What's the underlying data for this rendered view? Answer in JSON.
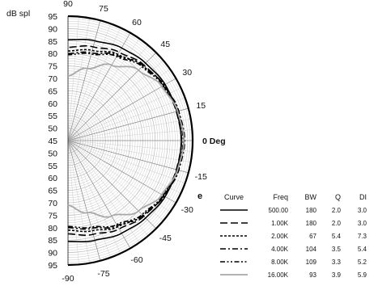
{
  "chart_data": {
    "type": "polar",
    "ylabel": "dB spl",
    "r_ticks": [
      95,
      90,
      85,
      80,
      75,
      70,
      65,
      60,
      55,
      50,
      45
    ],
    "r_range": [
      45,
      95
    ],
    "angle_range": [
      -90,
      90
    ],
    "angle_tick_labels": [
      "90",
      "75",
      "60",
      "45",
      "30",
      "15",
      "0 Deg",
      "-15",
      "-30",
      "-45",
      "-60",
      "-75",
      "-90"
    ],
    "angle_tick_values": [
      90,
      75,
      60,
      45,
      30,
      15,
      0,
      -15,
      -30,
      -45,
      -60,
      -75,
      -90
    ],
    "grid": true,
    "angles": [
      -90,
      -75,
      -60,
      -45,
      -30,
      -15,
      0,
      15,
      30,
      45,
      60,
      75,
      90
    ],
    "series": [
      {
        "name": "500.00",
        "style": "solid",
        "color": "#000000",
        "values": [
          85.5,
          86.5,
          88,
          89,
          90,
          90.2,
          90.5,
          90.2,
          90,
          89,
          88,
          86.5,
          85.5
        ]
      },
      {
        "name": "1.00K",
        "style": "longdash",
        "color": "#000000",
        "values": [
          82.5,
          84,
          86,
          88,
          89.2,
          90,
          90.5,
          90,
          89.2,
          88,
          86,
          84,
          82.5
        ]
      },
      {
        "name": "2.00K",
        "style": "dotted",
        "color": "#000000",
        "values": [
          81,
          82.5,
          85,
          87.5,
          89.5,
          90.8,
          91.5,
          90.8,
          89.5,
          87.5,
          85,
          82.5,
          81
        ]
      },
      {
        "name": "4.00K",
        "style": "dashdot",
        "color": "#000000",
        "values": [
          80,
          81.5,
          84.5,
          87.5,
          89.5,
          91,
          91.8,
          91,
          89.5,
          87.5,
          84.5,
          81.5,
          80
        ]
      },
      {
        "name": "8.00K",
        "style": "dashdotdot",
        "color": "#000000",
        "values": [
          79.5,
          81,
          84,
          87,
          89,
          90.5,
          91.2,
          90.5,
          89,
          87,
          84,
          81,
          79.5
        ]
      },
      {
        "name": "16.00K",
        "style": "solid",
        "color": "#a8a8a8",
        "values": [
          71,
          75,
          80,
          85,
          88.5,
          90.5,
          91.5,
          90.5,
          88.5,
          85,
          80,
          75,
          71
        ]
      }
    ],
    "legend_table": {
      "headers": [
        "Curve",
        "Freq",
        "BW",
        "Q",
        "DI"
      ],
      "rows": [
        {
          "freq": "500.00",
          "bw": "180",
          "q": "2.0",
          "di": "3.0"
        },
        {
          "freq": "1.00K",
          "bw": "180",
          "q": "2.0",
          "di": "3.0"
        },
        {
          "freq": "2.00K",
          "bw": "67",
          "q": "5.4",
          "di": "7.3"
        },
        {
          "freq": "4.00K",
          "bw": "104",
          "q": "3.5",
          "di": "5.4"
        },
        {
          "freq": "8.00K",
          "bw": "109",
          "q": "3.3",
          "di": "5.2"
        },
        {
          "freq": "16.00K",
          "bw": "93",
          "q": "3.9",
          "di": "5.9"
        }
      ]
    },
    "edge_glyph": "e"
  }
}
